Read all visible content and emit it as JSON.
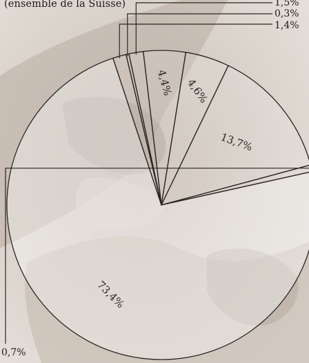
{
  "chart_data": {
    "type": "pie",
    "subtitle": "(ensemble de la Suisse)",
    "labels": [
      "73,4%",
      "1,4%",
      "0,3%",
      "1,5%",
      "4,4%",
      "4,6%",
      "13,7%",
      "0,7%"
    ],
    "values": [
      73.4,
      1.4,
      0.3,
      1.5,
      4.4,
      4.6,
      13.7,
      0.7
    ]
  }
}
